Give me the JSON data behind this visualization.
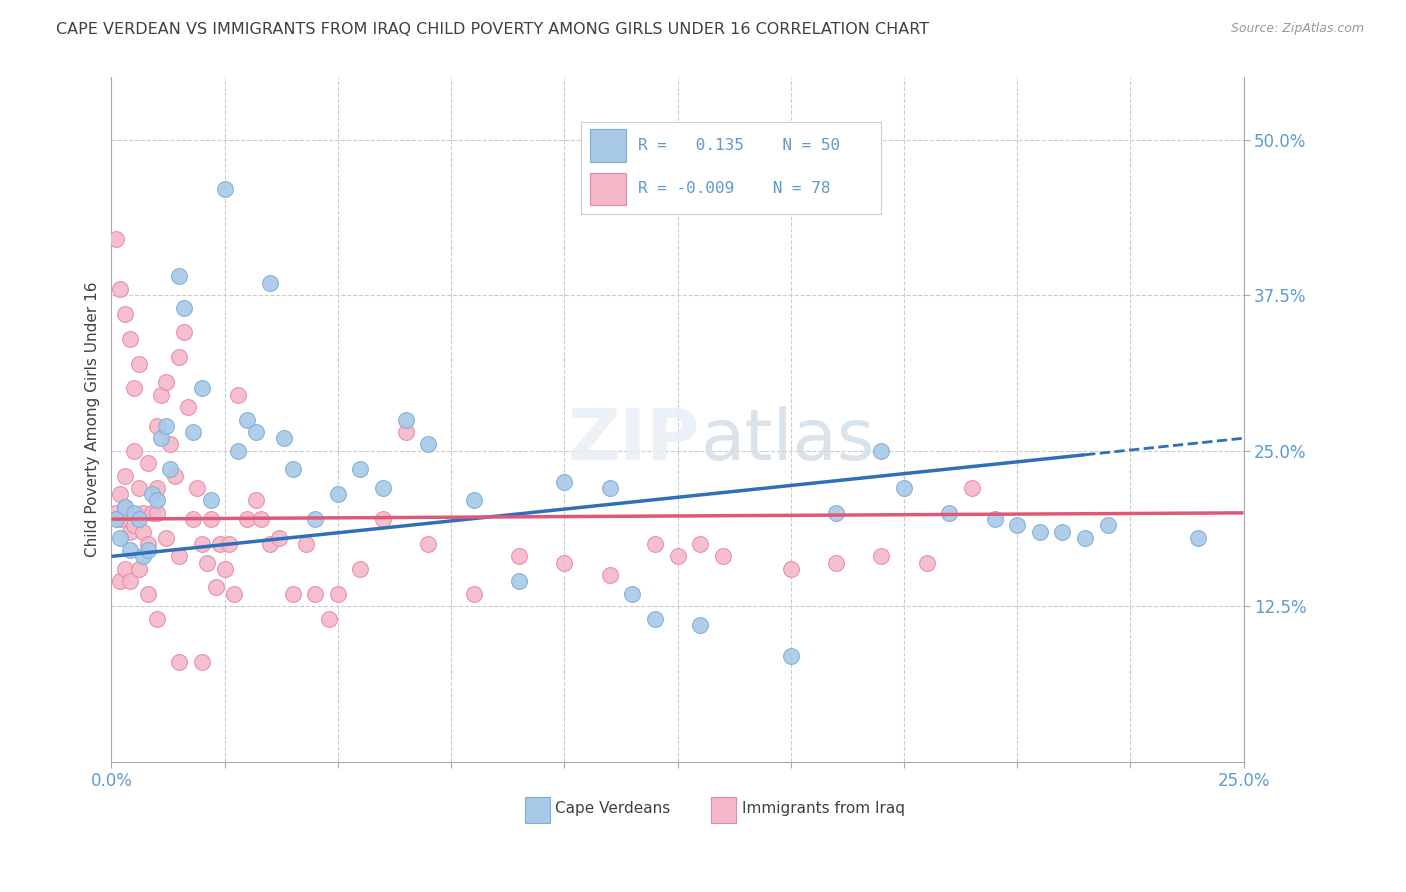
{
  "title": "CAPE VERDEAN VS IMMIGRANTS FROM IRAQ CHILD POVERTY AMONG GIRLS UNDER 16 CORRELATION CHART",
  "source": "Source: ZipAtlas.com",
  "ylabel": "Child Poverty Among Girls Under 16",
  "ytick_labels": [
    "50.0%",
    "37.5%",
    "25.0%",
    "12.5%"
  ],
  "ytick_values": [
    0.5,
    0.375,
    0.25,
    0.125
  ],
  "xlim": [
    0.0,
    0.25
  ],
  "ylim": [
    0.0,
    0.55
  ],
  "color_blue": "#a8c8e8",
  "color_blue_edge": "#7bafd4",
  "color_pink": "#f4b8c8",
  "color_pink_edge": "#e888a8",
  "color_trend_blue": "#3070b8",
  "color_trend_pink": "#e05878",
  "background_color": "#ffffff",
  "grid_color": "#cccccc",
  "axis_label_color": "#5b9bd5",
  "text_color": "#404040",
  "blue_x": [
    0.001,
    0.002,
    0.003,
    0.004,
    0.005,
    0.006,
    0.007,
    0.008,
    0.009,
    0.01,
    0.011,
    0.012,
    0.013,
    0.015,
    0.016,
    0.018,
    0.02,
    0.022,
    0.025,
    0.028,
    0.03,
    0.032,
    0.035,
    0.038,
    0.04,
    0.045,
    0.05,
    0.055,
    0.06,
    0.065,
    0.07,
    0.08,
    0.09,
    0.1,
    0.11,
    0.115,
    0.12,
    0.13,
    0.15,
    0.16,
    0.17,
    0.175,
    0.185,
    0.195,
    0.2,
    0.205,
    0.21,
    0.215,
    0.22,
    0.24
  ],
  "blue_y": [
    0.195,
    0.18,
    0.205,
    0.17,
    0.2,
    0.195,
    0.165,
    0.17,
    0.215,
    0.21,
    0.26,
    0.27,
    0.235,
    0.39,
    0.365,
    0.265,
    0.3,
    0.21,
    0.46,
    0.25,
    0.275,
    0.265,
    0.385,
    0.26,
    0.235,
    0.195,
    0.215,
    0.235,
    0.22,
    0.275,
    0.255,
    0.21,
    0.145,
    0.225,
    0.22,
    0.135,
    0.115,
    0.11,
    0.085,
    0.2,
    0.25,
    0.22,
    0.2,
    0.195,
    0.19,
    0.185,
    0.185,
    0.18,
    0.19,
    0.18
  ],
  "pink_x": [
    0.001,
    0.002,
    0.002,
    0.003,
    0.003,
    0.004,
    0.005,
    0.005,
    0.006,
    0.007,
    0.007,
    0.008,
    0.009,
    0.01,
    0.01,
    0.011,
    0.012,
    0.013,
    0.014,
    0.015,
    0.016,
    0.017,
    0.018,
    0.019,
    0.02,
    0.021,
    0.022,
    0.023,
    0.024,
    0.025,
    0.026,
    0.027,
    0.028,
    0.03,
    0.032,
    0.033,
    0.035,
    0.037,
    0.04,
    0.043,
    0.045,
    0.048,
    0.05,
    0.055,
    0.06,
    0.065,
    0.07,
    0.08,
    0.09,
    0.1,
    0.11,
    0.12,
    0.125,
    0.13,
    0.135,
    0.15,
    0.16,
    0.17,
    0.18,
    0.19,
    0.001,
    0.002,
    0.003,
    0.004,
    0.005,
    0.006,
    0.008,
    0.01,
    0.012,
    0.015,
    0.002,
    0.003,
    0.004,
    0.006,
    0.008,
    0.01,
    0.015,
    0.02
  ],
  "pink_y": [
    0.2,
    0.215,
    0.195,
    0.23,
    0.205,
    0.185,
    0.25,
    0.19,
    0.22,
    0.2,
    0.185,
    0.175,
    0.2,
    0.27,
    0.22,
    0.295,
    0.305,
    0.255,
    0.23,
    0.325,
    0.345,
    0.285,
    0.195,
    0.22,
    0.175,
    0.16,
    0.195,
    0.14,
    0.175,
    0.155,
    0.175,
    0.135,
    0.295,
    0.195,
    0.21,
    0.195,
    0.175,
    0.18,
    0.135,
    0.175,
    0.135,
    0.115,
    0.135,
    0.155,
    0.195,
    0.265,
    0.175,
    0.135,
    0.165,
    0.16,
    0.15,
    0.175,
    0.165,
    0.175,
    0.165,
    0.155,
    0.16,
    0.165,
    0.16,
    0.22,
    0.42,
    0.38,
    0.36,
    0.34,
    0.3,
    0.32,
    0.24,
    0.2,
    0.18,
    0.165,
    0.145,
    0.155,
    0.145,
    0.155,
    0.135,
    0.115,
    0.08,
    0.08
  ]
}
